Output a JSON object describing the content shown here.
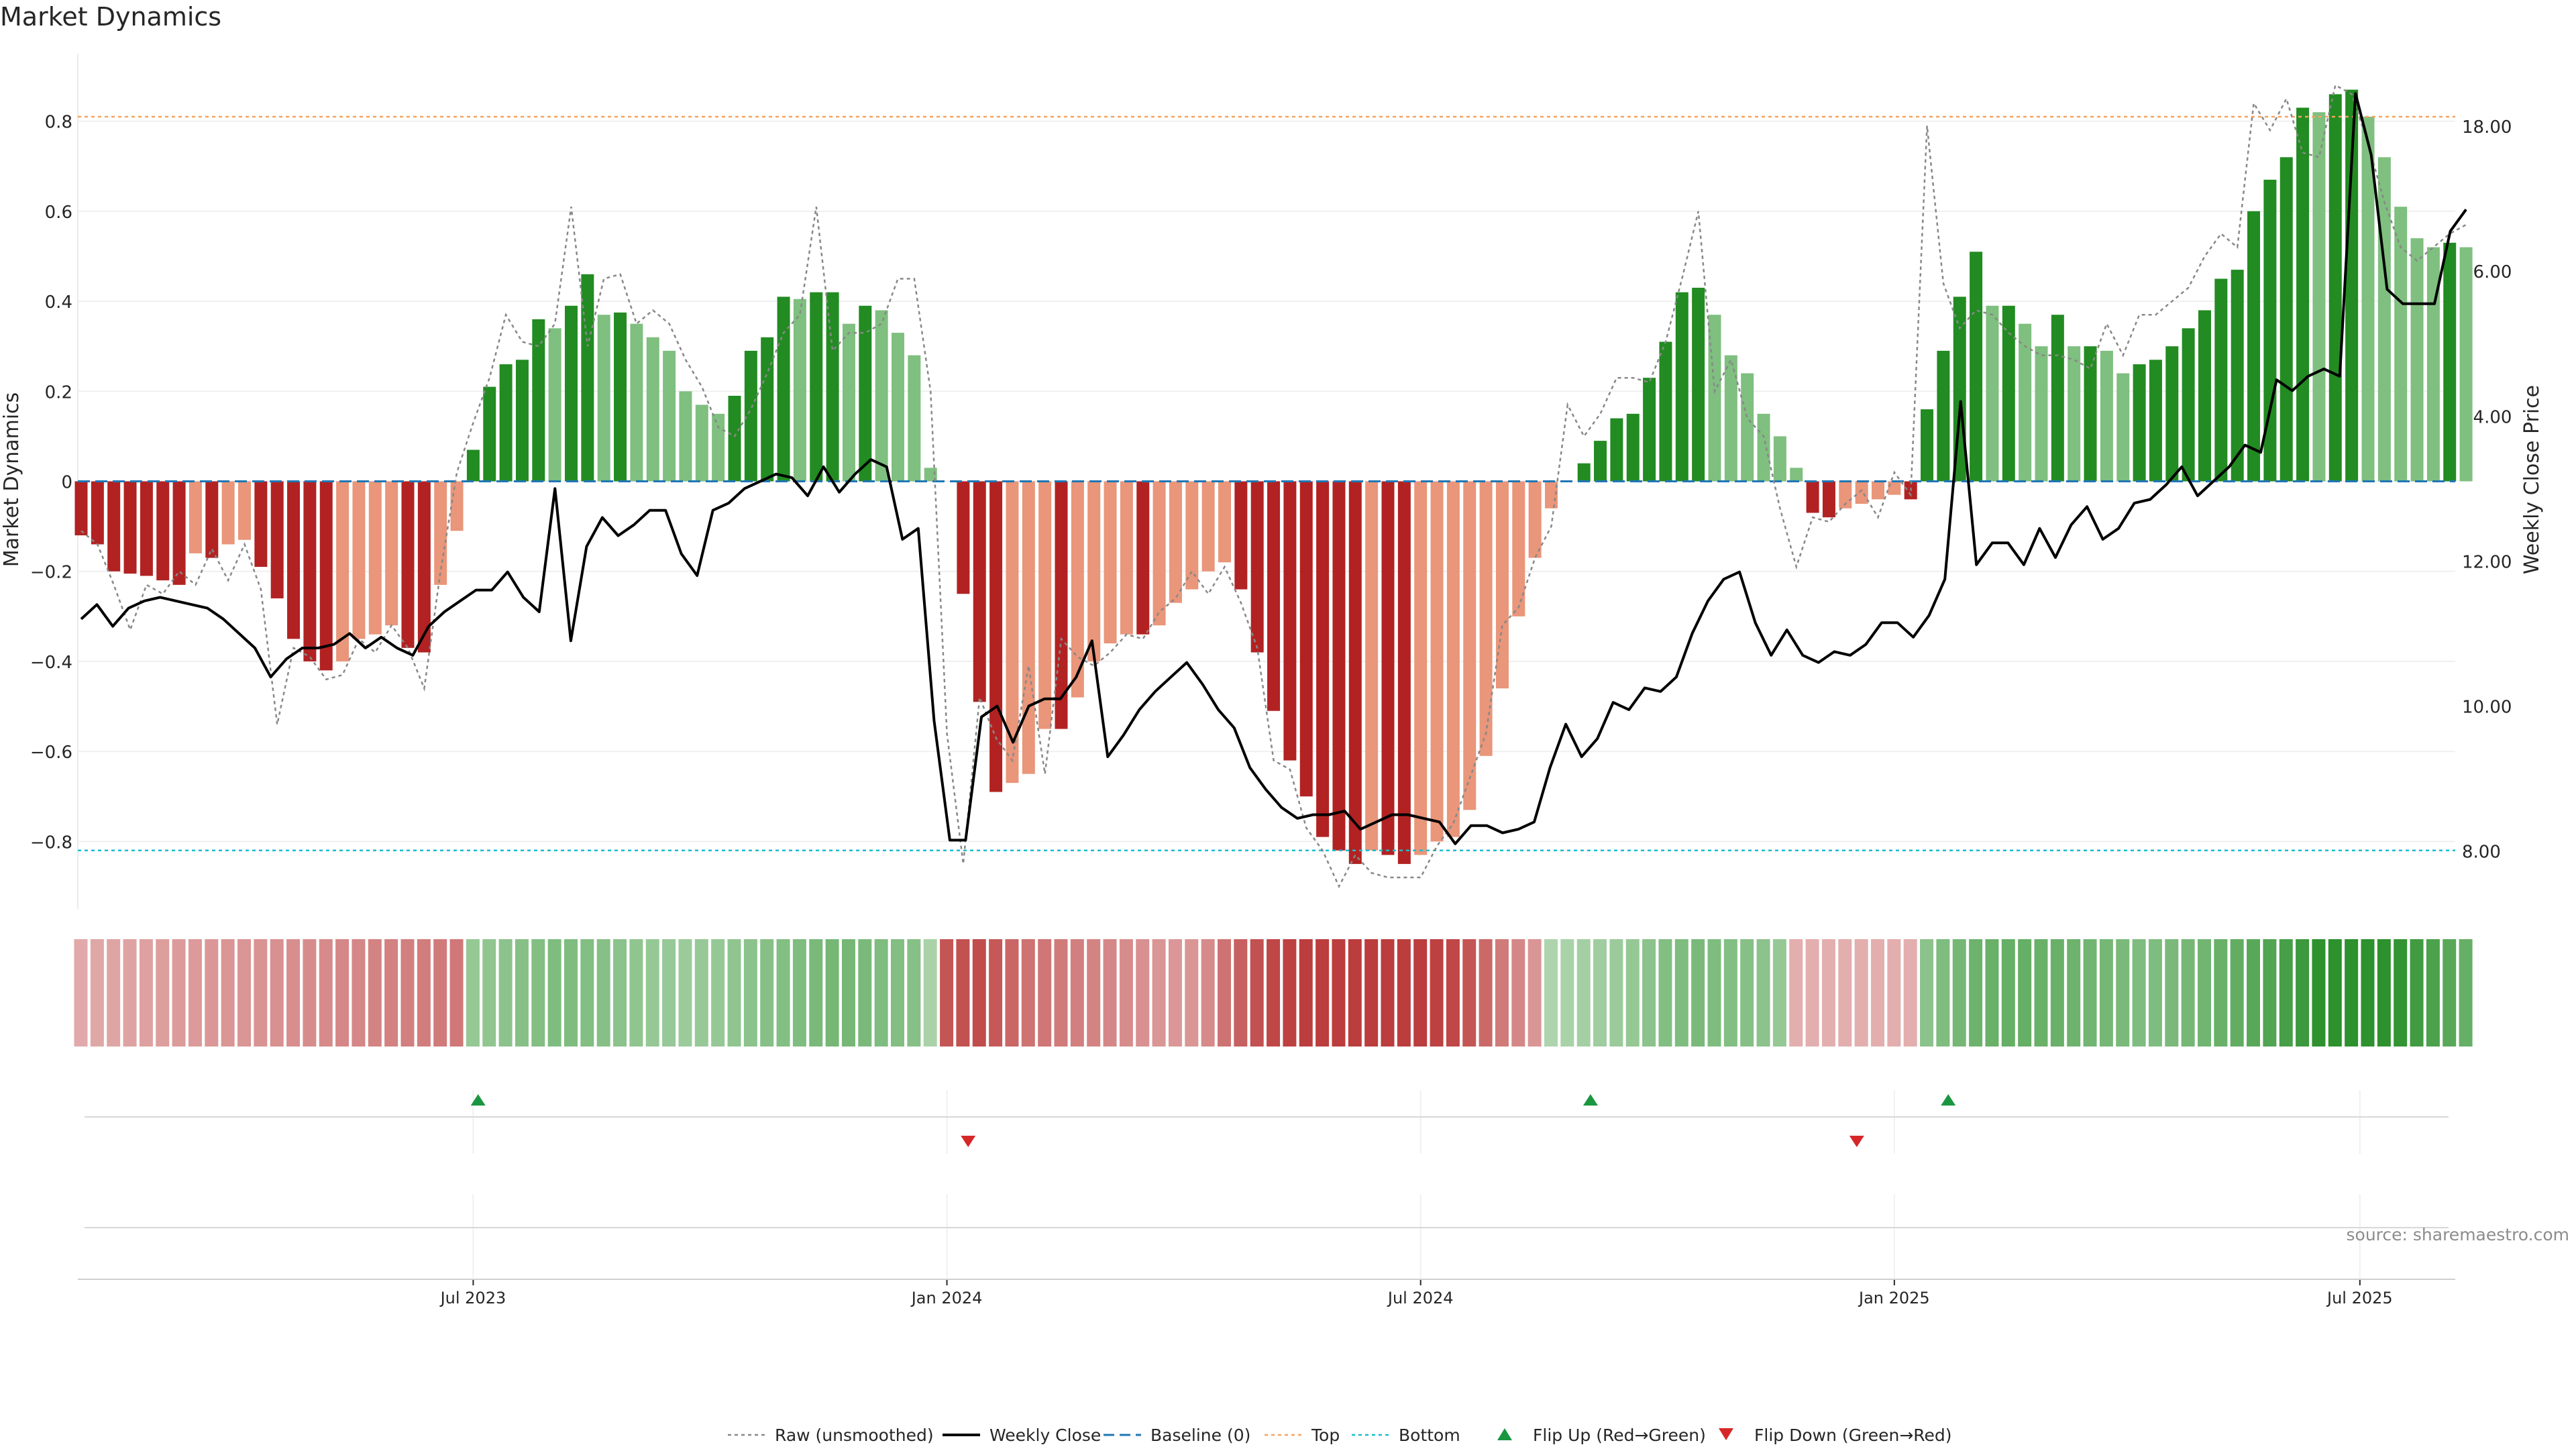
{
  "chart_data": {
    "type": "bar",
    "title": "Market Dynamics",
    "ylabel": "Market Dynamics",
    "y2label": "Weekly Close Price",
    "source": "source: sharemaestro.com",
    "ylim": [
      -0.95,
      0.95
    ],
    "y2lim": [
      7.2,
      19.0
    ],
    "yticks": [
      {
        "v": 0.8,
        "label": "0.8"
      },
      {
        "v": 0.6,
        "label": "0.6"
      },
      {
        "v": 0.4,
        "label": "0.4"
      },
      {
        "v": 0.2,
        "label": "0.2"
      },
      {
        "v": 0,
        "label": "0"
      },
      {
        "v": -0.2,
        "label": "−0.2"
      },
      {
        "v": -0.4,
        "label": "−0.4"
      },
      {
        "v": -0.6,
        "label": "−0.6"
      },
      {
        "v": -0.8,
        "label": "−0.8"
      }
    ],
    "y2ticks": [
      {
        "v": 18,
        "label": "18.00"
      },
      {
        "v": 16,
        "label": "16.00"
      },
      {
        "v": 14,
        "label": "14.00"
      },
      {
        "v": 12,
        "label": "12.00"
      },
      {
        "v": 10,
        "label": "10.00"
      },
      {
        "v": 8,
        "label": "8.00"
      }
    ],
    "xticks": [
      {
        "week": 24,
        "label": "Jul 2023"
      },
      {
        "week": 53,
        "label": "Jan 2024"
      },
      {
        "week": 82,
        "label": "Jul 2024"
      },
      {
        "week": 111,
        "label": "Jan 2025"
      },
      {
        "week": 139.5,
        "label": "Jul 2025"
      }
    ],
    "week_count": 159,
    "top_line": 0.81,
    "bottom_line": -0.82,
    "baseline": 0,
    "colors": {
      "strong_pos": "#228b22",
      "weak_pos": "#7fbf7f",
      "strong_neg": "#b22222",
      "weak_neg": "#e9967a",
      "price": "#000000",
      "raw": "#888888",
      "baseline": "#1f77b4",
      "top": "#f4a460",
      "bottom": "#17becf",
      "flip_up": "#1a9641",
      "flip_down": "#d62728"
    },
    "bars": [
      -0.12,
      -0.14,
      -0.2,
      -0.205,
      -0.21,
      -0.22,
      -0.23,
      -0.16,
      -0.17,
      -0.14,
      -0.13,
      -0.19,
      -0.26,
      -0.35,
      -0.4,
      -0.42,
      -0.4,
      -0.35,
      -0.34,
      -0.32,
      -0.37,
      -0.38,
      -0.23,
      -0.11,
      0.07,
      0.21,
      0.26,
      0.27,
      0.36,
      0.34,
      0.39,
      0.46,
      0.37,
      0.375,
      0.35,
      0.32,
      0.29,
      0.2,
      0.17,
      0.15,
      0.19,
      0.29,
      0.32,
      0.41,
      0.405,
      0.42,
      0.42,
      0.35,
      0.39,
      0.38,
      0.33,
      0.28,
      0.03,
      0.0,
      -0.25,
      -0.49,
      -0.69,
      -0.67,
      -0.65,
      -0.55,
      -0.55,
      -0.48,
      -0.4,
      -0.36,
      -0.34,
      -0.34,
      -0.32,
      -0.27,
      -0.24,
      -0.2,
      -0.18,
      -0.24,
      -0.38,
      -0.51,
      -0.62,
      -0.7,
      -0.79,
      -0.82,
      -0.85,
      -0.82,
      -0.83,
      -0.85,
      -0.83,
      -0.8,
      -0.79,
      -0.73,
      -0.61,
      -0.46,
      -0.3,
      -0.17,
      -0.06,
      0.0,
      0.04,
      0.09,
      0.14,
      0.15,
      0.23,
      0.31,
      0.42,
      0.43,
      0.37,
      0.28,
      0.24,
      0.15,
      0.1,
      0.03,
      -0.07,
      -0.08,
      -0.06,
      -0.05,
      -0.04,
      -0.03,
      -0.04,
      0.16,
      0.29,
      0.41,
      0.51,
      0.39,
      0.39,
      0.35,
      0.3,
      0.37,
      0.3,
      0.3,
      0.29,
      0.24,
      0.26,
      0.27,
      0.3,
      0.34,
      0.38,
      0.45,
      0.47,
      0.6,
      0.67,
      0.72,
      0.83,
      0.82,
      0.86,
      0.87,
      0.81,
      0.72,
      0.61,
      0.54,
      0.52,
      0.53,
      0.52
    ],
    "raw": [
      -0.11,
      -0.14,
      -0.23,
      -0.33,
      -0.23,
      -0.25,
      -0.2,
      -0.23,
      -0.15,
      -0.22,
      -0.14,
      -0.24,
      -0.54,
      -0.37,
      -0.39,
      -0.44,
      -0.43,
      -0.35,
      -0.38,
      -0.32,
      -0.37,
      -0.46,
      -0.2,
      0.02,
      0.13,
      0.23,
      0.37,
      0.31,
      0.3,
      0.35,
      0.61,
      0.3,
      0.45,
      0.46,
      0.35,
      0.38,
      0.35,
      0.27,
      0.21,
      0.12,
      0.1,
      0.16,
      0.24,
      0.33,
      0.37,
      0.61,
      0.29,
      0.33,
      0.33,
      0.35,
      0.45,
      0.45,
      0.2,
      -0.56,
      -0.85,
      -0.48,
      -0.57,
      -0.62,
      -0.41,
      -0.65,
      -0.35,
      -0.39,
      -0.41,
      -0.38,
      -0.34,
      -0.35,
      -0.29,
      -0.26,
      -0.2,
      -0.25,
      -0.19,
      -0.27,
      -0.37,
      -0.62,
      -0.64,
      -0.77,
      -0.82,
      -0.9,
      -0.83,
      -0.87,
      -0.88,
      -0.88,
      -0.88,
      -0.81,
      -0.76,
      -0.66,
      -0.56,
      -0.32,
      -0.28,
      -0.17,
      -0.1,
      0.17,
      0.1,
      0.15,
      0.23,
      0.23,
      0.22,
      0.31,
      0.45,
      0.6,
      0.2,
      0.27,
      0.14,
      0.1,
      -0.06,
      -0.19,
      -0.08,
      -0.09,
      -0.05,
      -0.02,
      -0.08,
      0.02,
      -0.03,
      0.79,
      0.44,
      0.34,
      0.38,
      0.37,
      0.33,
      0.3,
      0.28,
      0.28,
      0.27,
      0.25,
      0.35,
      0.28,
      0.37,
      0.37,
      0.4,
      0.43,
      0.5,
      0.55,
      0.52,
      0.84,
      0.78,
      0.85,
      0.73,
      0.72,
      0.88,
      0.86,
      0.75,
      0.62,
      0.52,
      0.49,
      0.52,
      0.55,
      0.57
    ],
    "price": [
      11.2,
      11.4,
      11.1,
      11.35,
      11.45,
      11.5,
      11.45,
      11.4,
      11.35,
      11.2,
      11.0,
      10.8,
      10.4,
      10.65,
      10.8,
      10.8,
      10.85,
      11.0,
      10.8,
      10.95,
      10.8,
      10.7,
      11.1,
      11.3,
      11.45,
      11.6,
      11.6,
      11.85,
      11.5,
      11.3,
      13.0,
      10.9,
      12.2,
      12.6,
      12.35,
      12.5,
      12.7,
      12.7,
      12.1,
      11.8,
      12.7,
      12.8,
      13.0,
      13.1,
      13.2,
      13.15,
      12.9,
      13.3,
      12.95,
      13.2,
      13.4,
      13.3,
      12.3,
      12.45,
      9.8,
      8.15,
      8.15,
      9.85,
      10.0,
      9.5,
      10.0,
      10.1,
      10.1,
      10.4,
      10.9,
      9.3,
      9.6,
      9.95,
      10.2,
      10.4,
      10.6,
      10.3,
      9.95,
      9.7,
      9.15,
      8.85,
      8.6,
      8.45,
      8.5,
      8.5,
      8.55,
      8.3,
      8.4,
      8.5,
      8.5,
      8.45,
      8.4,
      8.1,
      8.35,
      8.35,
      8.25,
      8.3,
      8.4,
      9.15,
      9.75,
      9.3,
      9.55,
      10.05,
      9.95,
      10.25,
      10.2,
      10.4,
      11.0,
      11.45,
      11.75,
      11.85,
      11.15,
      10.7,
      11.05,
      10.7,
      10.6,
      10.75,
      10.7,
      10.85,
      11.15,
      11.15,
      10.95,
      11.25,
      11.75,
      14.2,
      11.95,
      12.25,
      12.25,
      11.95,
      12.45,
      12.05,
      12.5,
      12.75,
      12.3,
      12.45,
      12.8,
      12.85,
      13.05,
      13.3,
      12.9,
      13.1,
      13.3,
      13.6,
      13.5,
      14.5,
      14.35,
      14.55,
      14.65,
      14.55,
      18.45,
      17.6,
      15.75,
      15.55,
      15.55,
      15.55,
      16.55,
      16.85
    ],
    "heat_values": [
      -0.2,
      -0.21,
      -0.22,
      -0.23,
      -0.24,
      -0.25,
      -0.26,
      -0.27,
      -0.28,
      -0.29,
      -0.3,
      -0.31,
      -0.32,
      -0.33,
      -0.34,
      -0.35,
      -0.36,
      -0.37,
      -0.38,
      -0.39,
      -0.4,
      -0.41,
      -0.42,
      -0.43,
      0.3,
      0.32,
      0.34,
      0.36,
      0.38,
      0.4,
      0.4,
      0.38,
      0.36,
      0.34,
      0.32,
      0.3,
      0.28,
      0.26,
      0.28,
      0.3,
      0.32,
      0.34,
      0.36,
      0.38,
      0.4,
      0.42,
      0.44,
      0.44,
      0.42,
      0.4,
      0.38,
      0.36,
      0.2,
      -0.6,
      -0.62,
      -0.64,
      -0.58,
      -0.52,
      -0.46,
      -0.44,
      -0.42,
      -0.4,
      -0.38,
      -0.36,
      -0.34,
      -0.32,
      -0.3,
      -0.28,
      -0.3,
      -0.35,
      -0.45,
      -0.55,
      -0.62,
      -0.66,
      -0.7,
      -0.72,
      -0.72,
      -0.72,
      -0.72,
      -0.72,
      -0.72,
      -0.72,
      -0.72,
      -0.7,
      -0.66,
      -0.6,
      -0.5,
      -0.42,
      -0.36,
      -0.3,
      0.18,
      0.2,
      0.22,
      0.24,
      0.26,
      0.3,
      0.34,
      0.38,
      0.4,
      0.42,
      0.4,
      0.38,
      0.36,
      0.34,
      0.3,
      -0.18,
      -0.18,
      -0.18,
      -0.18,
      -0.18,
      -0.18,
      -0.18,
      -0.18,
      0.34,
      0.4,
      0.44,
      0.48,
      0.5,
      0.52,
      0.52,
      0.5,
      0.5,
      0.48,
      0.46,
      0.44,
      0.42,
      0.4,
      0.4,
      0.42,
      0.44,
      0.46,
      0.5,
      0.54,
      0.58,
      0.62,
      0.66,
      0.72,
      0.78,
      0.82,
      0.84,
      0.84,
      0.82,
      0.76,
      0.7,
      0.64,
      0.58,
      0.52
    ],
    "flips": [
      {
        "week": 24.3,
        "dir": "up"
      },
      {
        "week": 54.3,
        "dir": "down"
      },
      {
        "week": 92.4,
        "dir": "up"
      },
      {
        "week": 108.7,
        "dir": "down"
      },
      {
        "week": 114.3,
        "dir": "up"
      }
    ],
    "legend": [
      {
        "kind": "raw",
        "label": "Raw (unsmoothed)"
      },
      {
        "kind": "price",
        "label": "Weekly Close"
      },
      {
        "kind": "baseline",
        "label": "Baseline (0)"
      },
      {
        "kind": "top",
        "label": "Top"
      },
      {
        "kind": "bottom",
        "label": "Bottom"
      },
      {
        "kind": "flip_up",
        "label": "Flip Up (Red→Green)"
      },
      {
        "kind": "flip_down",
        "label": "Flip Down (Green→Red)"
      }
    ]
  }
}
